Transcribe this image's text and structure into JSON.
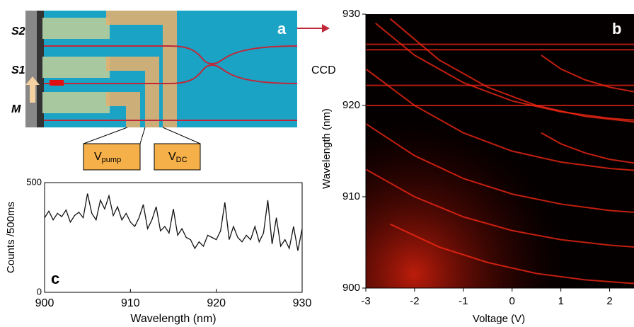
{
  "panel_a": {
    "label": "a",
    "side_labels": [
      "S2",
      "S1",
      "M"
    ],
    "v_pump": {
      "main": "V",
      "sub": "pump"
    },
    "v_dc": {
      "main": "V",
      "sub": "DC"
    }
  },
  "ccd_label": "CCD",
  "chart_data": [
    {
      "type": "line",
      "panel_label": "c",
      "xlabel": "Wavelength (nm)",
      "ylabel": "Counts /500ms",
      "color": "#111111",
      "xlim": [
        900,
        930
      ],
      "xticks": [
        900,
        910,
        920,
        930
      ],
      "ylim": [
        0,
        500
      ],
      "yticks": [
        0,
        500
      ],
      "x": [
        900,
        900.5,
        901,
        901.5,
        902,
        902.5,
        903,
        903.5,
        904,
        904.5,
        905,
        905.5,
        906,
        906.5,
        907,
        907.5,
        908,
        908.5,
        909,
        909.5,
        910,
        910.5,
        911,
        911.5,
        912,
        912.5,
        913,
        913.5,
        914,
        914.5,
        915,
        915.5,
        916,
        916.5,
        917,
        917.5,
        918,
        918.5,
        919,
        919.5,
        920,
        920.5,
        921,
        921.5,
        922,
        922.5,
        923,
        923.5,
        924,
        924.5,
        925,
        925.5,
        926,
        926.5,
        927,
        927.5,
        928,
        928.5,
        929,
        929.5,
        930
      ],
      "values": [
        340,
        370,
        330,
        360,
        345,
        375,
        320,
        350,
        365,
        340,
        450,
        360,
        330,
        420,
        380,
        440,
        350,
        390,
        330,
        360,
        320,
        300,
        340,
        400,
        290,
        330,
        390,
        280,
        300,
        270,
        380,
        260,
        290,
        250,
        240,
        200,
        230,
        210,
        260,
        250,
        240,
        280,
        410,
        240,
        300,
        250,
        230,
        260,
        240,
        300,
        230,
        270,
        420,
        220,
        340,
        210,
        240,
        200,
        300,
        190,
        290
      ]
    },
    {
      "type": "heatmap",
      "panel_label": "b",
      "xlabel": "Voltage (V)",
      "ylabel": "Wavelength (nm)",
      "color": "#ff2a14",
      "xlim": [
        -3,
        2.5
      ],
      "xticks": [
        -3,
        -2,
        -1,
        0,
        1,
        2
      ],
      "ylim": [
        900,
        930
      ],
      "yticks": [
        900,
        910,
        920,
        930
      ],
      "horizontal_lines": [
        926.7,
        926.1,
        922.2,
        920.0
      ],
      "curves": [
        {
          "x": [
            -2.8,
            -2,
            -1,
            0,
            1,
            2,
            2.5
          ],
          "values": [
            929,
            925.5,
            922.5,
            920.5,
            919.3,
            918.6,
            918.4
          ]
        },
        {
          "x": [
            -2.5,
            -1.5,
            -0.5,
            0.5,
            1.5,
            2.5
          ],
          "values": [
            929.5,
            925,
            922,
            920,
            918.8,
            918.2
          ]
        },
        {
          "x": [
            -3,
            -2,
            -1,
            0,
            1,
            2,
            2.5
          ],
          "values": [
            924,
            920,
            917,
            915,
            913.8,
            913.1,
            912.9
          ]
        },
        {
          "x": [
            -3,
            -2,
            -1,
            0,
            1,
            2,
            2.5
          ],
          "values": [
            918,
            914.5,
            912,
            910.3,
            909.2,
            908.5,
            908.3
          ]
        },
        {
          "x": [
            -3,
            -2,
            -1,
            0,
            1,
            2,
            2.5
          ],
          "values": [
            913,
            910,
            907.8,
            906.3,
            905.3,
            904.7,
            904.5
          ]
        },
        {
          "x": [
            -2.5,
            -1.5,
            -0.5,
            0.5,
            1.5,
            2.5
          ],
          "values": [
            907,
            904.5,
            902.8,
            901.6,
            900.9,
            900.5
          ]
        },
        {
          "x": [
            0.6,
            1,
            1.5,
            2,
            2.5
          ],
          "values": [
            925.5,
            924,
            922.8,
            922,
            921.5
          ]
        },
        {
          "x": [
            0.6,
            1,
            1.5,
            2,
            2.5
          ],
          "values": [
            917,
            915.8,
            914.8,
            914.1,
            913.7
          ]
        }
      ]
    }
  ]
}
